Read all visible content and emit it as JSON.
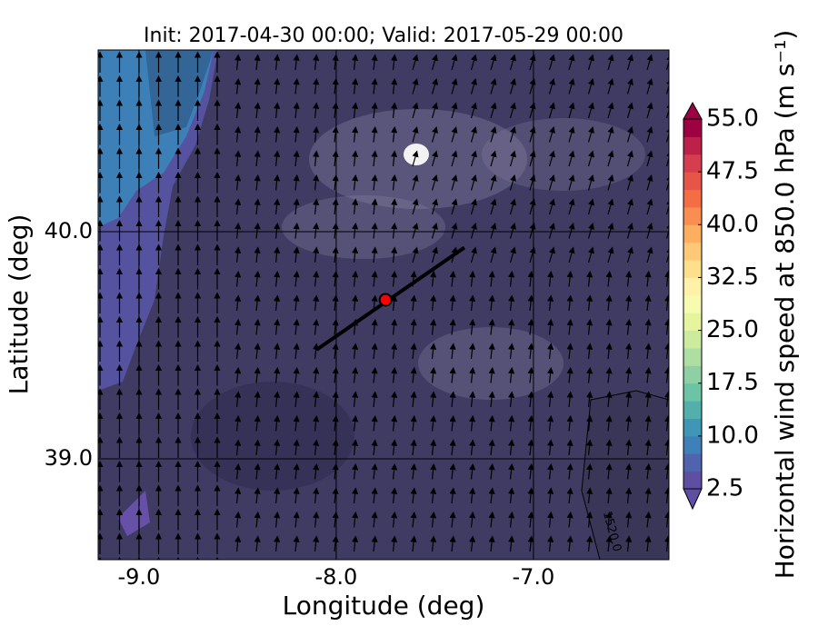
{
  "chart_data": {
    "type": "map",
    "title": "Init: 2017-04-30 00:00; Valid: 2017-05-29 00:00",
    "xlabel": "Longitude (deg)",
    "ylabel": "Latitude (deg)",
    "xlim": [
      -9.207,
      -6.313
    ],
    "ylim": [
      38.556,
      40.8
    ],
    "xticks": [
      {
        "value": -9,
        "label": "-9.0"
      },
      {
        "value": -8,
        "label": "-8.0"
      },
      {
        "value": -7,
        "label": "-7.0"
      }
    ],
    "yticks": [
      {
        "value": 39,
        "label": "39.0"
      },
      {
        "value": 40,
        "label": "40.0"
      }
    ],
    "grid": true,
    "section": {
      "lon": [
        -8.1,
        -7.35
      ],
      "lat": [
        39.48,
        39.93
      ],
      "color": "#000000"
    },
    "point": {
      "lon": -7.75,
      "lat": 39.7,
      "color": "#ff0000"
    },
    "contour_label": "1520.0",
    "colorbar": {
      "label": "Horizontal wind speed at 850.0 hPa (m s⁻¹)",
      "clim": [
        2.5,
        55
      ],
      "ticks": [
        2.5,
        {
          "value": 10,
          "label": "10.0"
        },
        17.5,
        {
          "value": 25,
          "label": "25.0"
        },
        32.5,
        {
          "value": 40,
          "label": "40.0"
        },
        47.5,
        {
          "value": 55,
          "label": "55.0"
        }
      ],
      "colors": [
        "#5e4fa2",
        "#4f64ad",
        "#3f80b9",
        "#3f96b6",
        "#54aeac",
        "#6cc3a5",
        "#8ed0a4",
        "#afdea2",
        "#cdeb9e",
        "#e6f59d",
        "#f7fbb0",
        "#fff2a8",
        "#fee08b",
        "#fdc877",
        "#fdae61",
        "#f98d52",
        "#f46d43",
        "#e55649",
        "#d53e4f",
        "#bb2149",
        "#9e0142"
      ]
    }
  }
}
